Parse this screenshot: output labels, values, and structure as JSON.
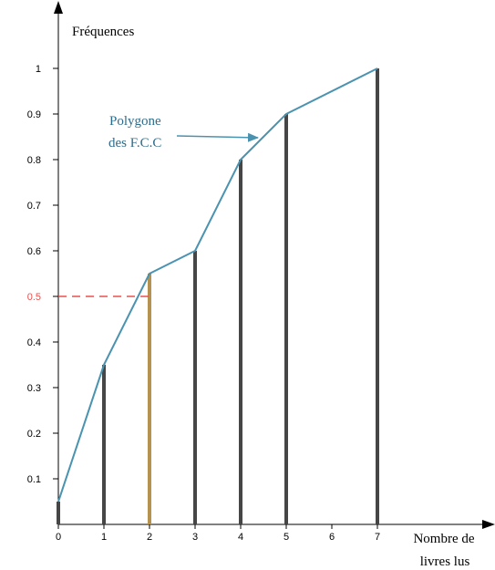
{
  "chart_data": {
    "type": "bar",
    "ylabel": "Fréquences",
    "xlabel_lines": [
      "Nombre de",
      "livres lus"
    ],
    "x": [
      0,
      1,
      2,
      3,
      4,
      5,
      7
    ],
    "values": [
      0.05,
      0.35,
      0.55,
      0.6,
      0.8,
      0.9,
      1.0
    ],
    "x_ticks": [
      "0",
      "1",
      "2",
      "3",
      "4",
      "5",
      "6",
      "7"
    ],
    "y_ticks": [
      "0.1",
      "0.2",
      "0.3",
      "0.4",
      "0.5",
      "0.6",
      "0.7",
      "0.8",
      "0.9",
      "1"
    ],
    "xlim": [
      0,
      9
    ],
    "ylim": [
      0,
      1.1
    ],
    "highlight_y": 0.5,
    "highlight_x": 2,
    "highlight_y_label": "0.5",
    "annotation_lines": [
      "Polygone",
      "des F.C.C"
    ],
    "colors": {
      "bars": "#464646",
      "highlight_bar": "#b5924f",
      "polygon": "#4a93b0",
      "dashed": "#e8514f",
      "annotation": "#2c6c8c",
      "axis": "#000000"
    }
  }
}
